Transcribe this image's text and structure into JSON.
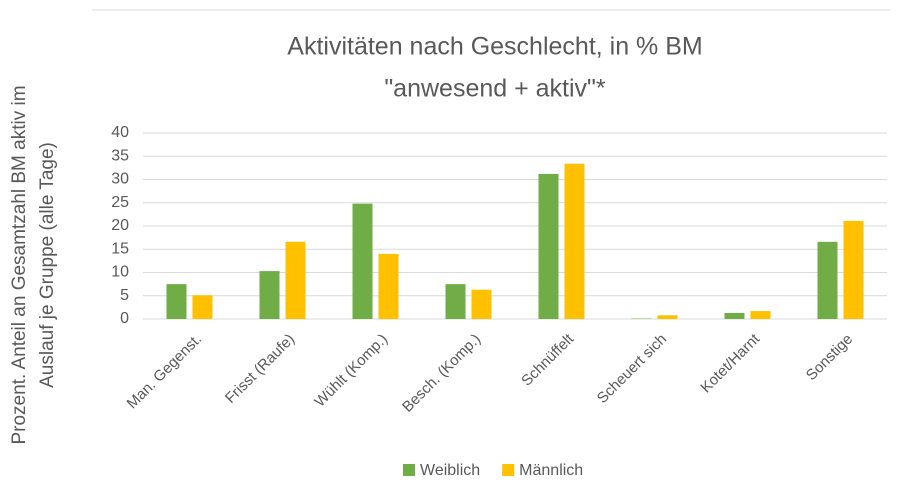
{
  "chart_data": {
    "type": "bar",
    "title": [
      "Aktivitäten nach Geschlecht, in % BM",
      "\"anwesend + aktiv\"*"
    ],
    "ylabel": [
      "Prozent. Anteil an Gesamtzahl BM aktiv im",
      "Auslauf  je Gruppe (alle Tage)"
    ],
    "categories": [
      "Man. Gegenst.",
      "Frisst (Raufe)",
      "Wühlt (Komp.)",
      "Besch. (Komp.)",
      "Schnüffelt",
      "Scheuert sich",
      "Kotet/Harnt",
      "Sonstige"
    ],
    "series": [
      {
        "name": "Weiblich",
        "color": "#70ad47",
        "values": [
          7.5,
          10.3,
          24.8,
          7.5,
          31.2,
          0.1,
          1.3,
          16.6
        ]
      },
      {
        "name": "Männlich",
        "color": "#ffc000",
        "values": [
          5.1,
          16.6,
          14,
          6.3,
          33.4,
          0.8,
          1.7,
          21.1
        ]
      }
    ],
    "ylim": [
      0,
      40
    ],
    "yticks": [
      0,
      5,
      10,
      15,
      20,
      25,
      30,
      35,
      40
    ],
    "grid": true,
    "legend": "bottom"
  }
}
